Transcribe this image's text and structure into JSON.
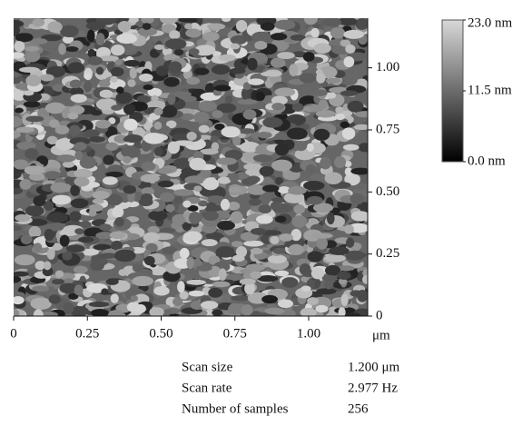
{
  "chart_data": {
    "type": "image",
    "x_unit": "μm",
    "xlim": [
      0,
      1.2
    ],
    "ylim": [
      0,
      1.2
    ],
    "xticks": [
      0,
      {
        "value": 0.25,
        "label": "0.25"
      },
      {
        "value": 0.5,
        "label": "0.50"
      },
      {
        "value": 0.75,
        "label": "0.75"
      },
      {
        "value": 1,
        "label": "1.00"
      }
    ],
    "yticks": [
      0,
      {
        "value": 0.25,
        "label": "0.25"
      },
      {
        "value": 0.5,
        "label": "0.50"
      },
      {
        "value": 0.75,
        "label": "0.75"
      },
      {
        "value": 1,
        "label": "1.00"
      }
    ],
    "colorbar": {
      "lim": [
        0,
        23
      ],
      "colors": [
        "#000000",
        "#d8d8d8"
      ],
      "ticks": [
        {
          "value": 23,
          "label": "23.0 nm"
        },
        {
          "value": 11.5,
          "label": "11.5 nm"
        },
        {
          "value": 0,
          "label": "0.0 nm"
        }
      ]
    },
    "parameters": [
      {
        "label": "Scan size",
        "value": "1.200 μm"
      },
      {
        "label": "Scan rate",
        "value": "2.977 Hz"
      },
      {
        "label": "Number of samples",
        "value": "256"
      }
    ]
  }
}
